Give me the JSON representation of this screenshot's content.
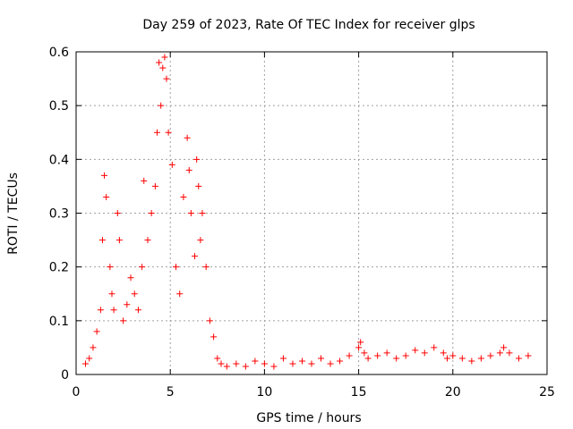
{
  "chart_data": {
    "type": "scatter",
    "title": "Day 259 of 2023, Rate Of TEC Index for receiver glps",
    "xlabel": "GPS time / hours",
    "ylabel": "ROTI / TECUs",
    "xlim": [
      0,
      25
    ],
    "ylim": [
      0,
      0.6
    ],
    "xticks": [
      "0",
      "5",
      "10",
      "15",
      "20",
      "25"
    ],
    "yticks": [
      "0",
      "0.1",
      "0.2",
      "0.3",
      "0.4",
      "0.5",
      "0.6"
    ],
    "grid": true,
    "marker": "+",
    "color": "#ff0000",
    "series": [
      {
        "name": "ROTI",
        "x": [
          0.5,
          0.7,
          0.9,
          1.1,
          1.3,
          1.4,
          1.5,
          1.6,
          1.8,
          1.9,
          2.0,
          2.2,
          2.3,
          2.5,
          2.7,
          2.9,
          3.1,
          3.3,
          3.5,
          3.6,
          3.8,
          4.0,
          4.2,
          4.3,
          4.4,
          4.5,
          4.6,
          4.7,
          4.8,
          4.9,
          5.1,
          5.3,
          5.5,
          5.7,
          5.9,
          6.0,
          6.1,
          6.3,
          6.4,
          6.5,
          6.6,
          6.7,
          6.9,
          7.1,
          7.3,
          7.5,
          7.7,
          8.0,
          8.5,
          9.0,
          9.5,
          10.0,
          10.5,
          11.0,
          11.5,
          12.0,
          12.5,
          13.0,
          13.5,
          14.0,
          14.5,
          15.0,
          15.1,
          15.3,
          15.5,
          16.0,
          16.5,
          17.0,
          17.5,
          18.0,
          18.5,
          19.0,
          19.5,
          19.7,
          20.0,
          20.5,
          21.0,
          21.5,
          22.0,
          22.5,
          22.7,
          23.0,
          23.5,
          24.0
        ],
        "y": [
          0.02,
          0.03,
          0.05,
          0.08,
          0.12,
          0.25,
          0.37,
          0.33,
          0.2,
          0.15,
          0.12,
          0.3,
          0.25,
          0.1,
          0.13,
          0.18,
          0.15,
          0.12,
          0.2,
          0.36,
          0.25,
          0.3,
          0.35,
          0.45,
          0.58,
          0.5,
          0.57,
          0.59,
          0.55,
          0.45,
          0.39,
          0.2,
          0.15,
          0.33,
          0.44,
          0.38,
          0.3,
          0.22,
          0.4,
          0.35,
          0.25,
          0.3,
          0.2,
          0.1,
          0.07,
          0.03,
          0.02,
          0.015,
          0.02,
          0.015,
          0.025,
          0.02,
          0.015,
          0.03,
          0.02,
          0.025,
          0.02,
          0.03,
          0.02,
          0.025,
          0.035,
          0.05,
          0.06,
          0.04,
          0.03,
          0.035,
          0.04,
          0.03,
          0.035,
          0.045,
          0.04,
          0.05,
          0.04,
          0.03,
          0.035,
          0.03,
          0.025,
          0.03,
          0.035,
          0.04,
          0.05,
          0.04,
          0.03,
          0.035
        ]
      }
    ]
  }
}
